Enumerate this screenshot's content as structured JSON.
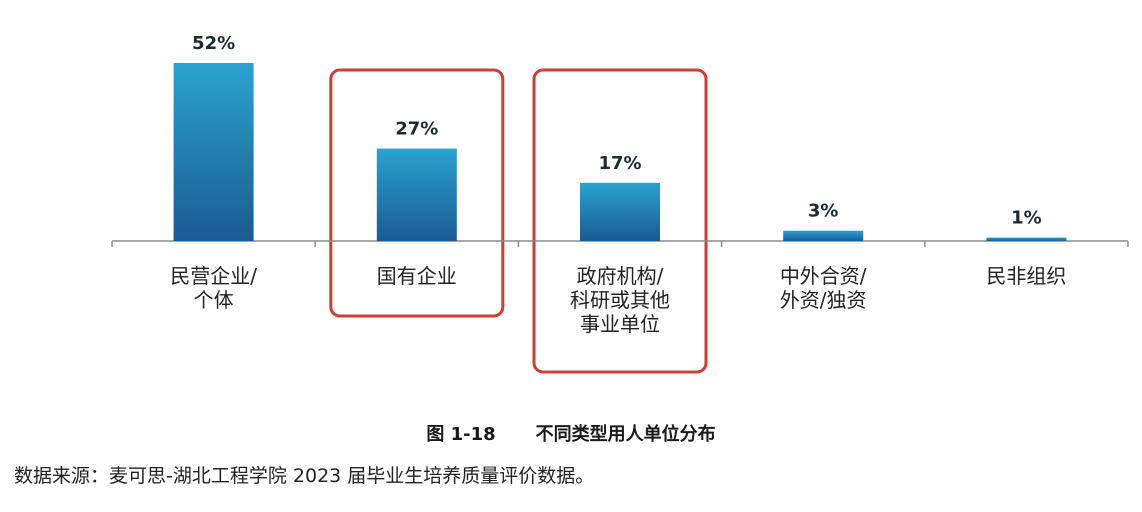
{
  "chart_data": {
    "type": "bar",
    "categories": [
      "民营企业/\n个体",
      "国有企业",
      "政府机构/\n科研或其他\n事业单位",
      "中外合资/\n外资/独资",
      "民非组织"
    ],
    "values": [
      52,
      27,
      17,
      3,
      1
    ],
    "value_labels": [
      "52%",
      "27%",
      "17%",
      "3%",
      "1%"
    ],
    "highlighted_categories": [
      1,
      2
    ],
    "unit": "%",
    "title": "",
    "xlabel": "",
    "ylabel": "",
    "ylim": [
      0,
      52
    ],
    "grid": false,
    "legend": "none",
    "colors": {
      "bar_top": "#2aa3cf",
      "bar_bottom": "#1a5a94",
      "highlight_box": "#d23c33",
      "axis": "#8c8c8c"
    }
  },
  "caption": {
    "figure_number": "图  1-18",
    "title": "不同类型用人单位分布"
  },
  "source_note": "数据来源：麦可思-湖北工程学院 2023 届毕业生培养质量评价数据。"
}
